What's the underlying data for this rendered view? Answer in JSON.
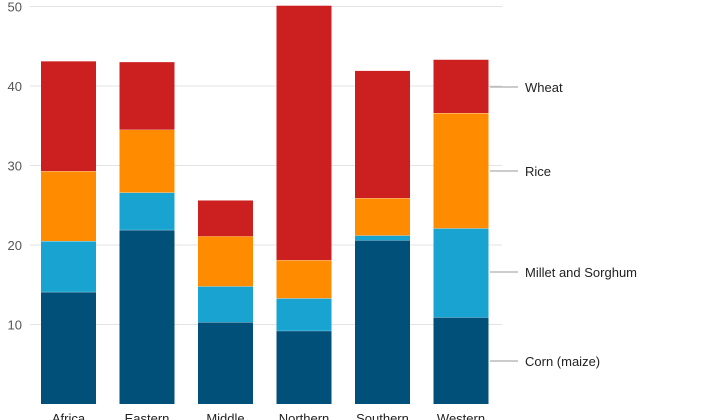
{
  "chart_data": {
    "type": "bar",
    "stacked": true,
    "categories": [
      "Africa",
      "Eastern",
      "Middle",
      "Northern",
      "Southern",
      "Western"
    ],
    "series": [
      {
        "name": "Corn (maize)",
        "color": "#00507a",
        "values": [
          14.1,
          21.9,
          10.3,
          9.2,
          20.6,
          10.9
        ]
      },
      {
        "name": "Millet and Sorghum",
        "color": "#19a3d1",
        "values": [
          6.4,
          4.7,
          4.5,
          4.1,
          0.6,
          11.2
        ]
      },
      {
        "name": "Rice",
        "color": "#ff8c00",
        "values": [
          8.8,
          7.9,
          6.3,
          4.8,
          4.7,
          14.5
        ]
      },
      {
        "name": "Wheat",
        "color": "#cc1f1f",
        "values": [
          13.8,
          8.5,
          4.5,
          32.0,
          16.0,
          6.7
        ]
      }
    ],
    "yticks": [
      10,
      20,
      30,
      40,
      50
    ],
    "ylim": [
      0,
      52
    ],
    "grid": true,
    "legend": "right",
    "title": "",
    "xlabel": "",
    "ylabel": ""
  }
}
